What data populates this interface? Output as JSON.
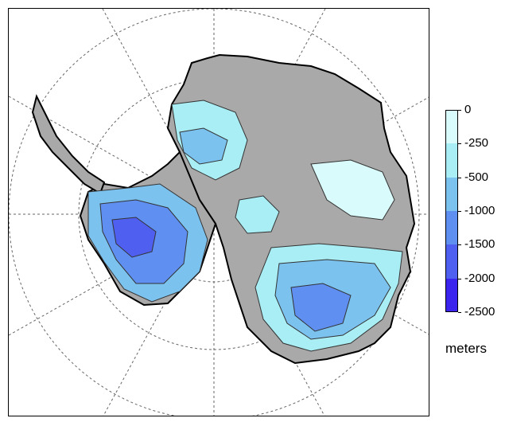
{
  "legend": {
    "unit": "meters",
    "levels": [
      "0",
      "-250",
      "-500",
      "-1000",
      "-1500",
      "-2000",
      "-2500"
    ],
    "colors": [
      "#d9fbfb",
      "#a9eef4",
      "#7cc2ef",
      "#5f8ff0",
      "#4f5ff0",
      "#3a24ee",
      "#8e00f8"
    ]
  },
  "map": {
    "land_color": "#a9a9a9",
    "grid_color": "#666666"
  }
}
